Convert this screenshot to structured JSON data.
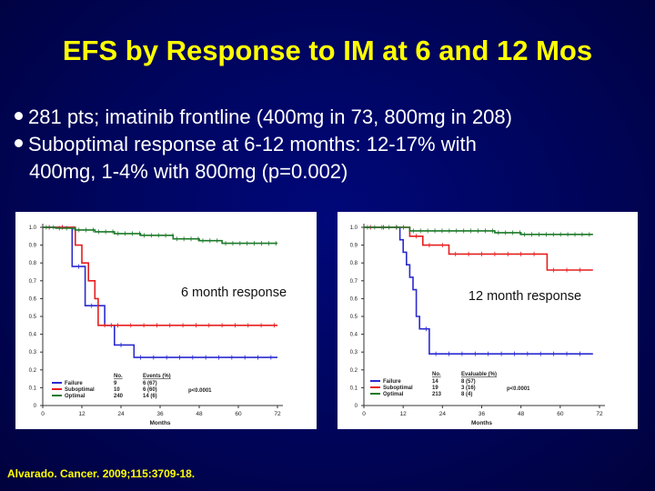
{
  "slide": {
    "title": "EFS by Response to IM at 6 and 12 Mos",
    "bullets": [
      {
        "lines": [
          "281 pts; imatinib frontline (400mg in 73, 800mg in 208)"
        ]
      },
      {
        "lines": [
          "Suboptimal response at 6-12 months: 12-17% with",
          "400mg, 1-4% with 800mg (p=0.002)"
        ]
      }
    ],
    "citation": "Alvarado. Cancer. 2009;115:3709-18."
  },
  "colors": {
    "failure": "#2a2ad0",
    "suboptimal": "#e61e1e",
    "optimal": "#1d7a2a",
    "title": "#ffff00"
  },
  "chart_data": [
    {
      "type": "line",
      "title": "",
      "annotation": "6 month response",
      "xlabel": "Months",
      "ylabel": "",
      "xlim": [
        0,
        72
      ],
      "ylim": [
        0,
        1.0
      ],
      "xticks": [
        "0",
        "12",
        "24",
        "36",
        "48",
        "60",
        "72"
      ],
      "yticks": [
        "0",
        "0.1",
        "0.2",
        "0.3",
        "0.4",
        "0.5",
        "0.6",
        "0.7",
        "0.8",
        "0.9",
        "1.0"
      ],
      "grid": false,
      "legend_table": {
        "headers": [
          "",
          "No.",
          "Events (%)"
        ],
        "rows": [
          [
            "Failure",
            "9",
            "6 (67)"
          ],
          [
            "Suboptimal",
            "10",
            "6 (60)"
          ],
          [
            "Optimal",
            "240",
            "14 (6)"
          ]
        ],
        "pvalue": "p<0.0001"
      },
      "series": [
        {
          "name": "Failure",
          "color_key": "failure",
          "x": [
            0,
            8,
            9,
            9,
            13,
            13,
            19,
            19,
            22,
            22,
            28,
            28,
            72
          ],
          "y": [
            1.0,
            1.0,
            1.0,
            0.78,
            0.78,
            0.56,
            0.56,
            0.45,
            0.45,
            0.34,
            0.34,
            0.27,
            0.27
          ]
        },
        {
          "name": "Suboptimal",
          "color_key": "suboptimal",
          "x": [
            0,
            10,
            10,
            12,
            12,
            14,
            14,
            16,
            16,
            17,
            17,
            72
          ],
          "y": [
            1.0,
            1.0,
            0.9,
            0.9,
            0.8,
            0.8,
            0.7,
            0.7,
            0.6,
            0.6,
            0.45,
            0.45
          ],
          "end": 70
        },
        {
          "name": "Optimal",
          "color_key": "optimal",
          "x": [
            0,
            4,
            4,
            10,
            10,
            16,
            16,
            22,
            22,
            30,
            30,
            40,
            40,
            48,
            48,
            55,
            55,
            72
          ],
          "y": [
            1.0,
            1.0,
            0.995,
            0.995,
            0.985,
            0.985,
            0.975,
            0.975,
            0.965,
            0.965,
            0.955,
            0.955,
            0.935,
            0.935,
            0.925,
            0.925,
            0.91,
            0.91
          ],
          "end": 70
        }
      ]
    },
    {
      "type": "line",
      "title": "",
      "annotation": "12 month response",
      "xlabel": "Months",
      "ylabel": "",
      "xlim": [
        0,
        72
      ],
      "ylim": [
        0,
        1.0
      ],
      "xticks": [
        "0",
        "12",
        "24",
        "36",
        "48",
        "60",
        "72"
      ],
      "yticks": [
        "0",
        "0.1",
        "0.2",
        "0.3",
        "0.4",
        "0.5",
        "0.6",
        "0.7",
        "0.8",
        "0.9",
        "1.0"
      ],
      "grid": false,
      "legend_table": {
        "headers": [
          "",
          "No.",
          "Evaluable (%)"
        ],
        "rows": [
          [
            "Failure",
            "14",
            "8 (57)"
          ],
          [
            "Suboptimal",
            "19",
            "3 (16)"
          ],
          [
            "Optimal",
            "213",
            "8 (4)"
          ]
        ],
        "pvalue": "p<0.0001"
      },
      "series": [
        {
          "name": "Failure",
          "color_key": "failure",
          "x": [
            0,
            11,
            11,
            12,
            12,
            13,
            13,
            14,
            14,
            15,
            15,
            16,
            16,
            17,
            17,
            20,
            20,
            70
          ],
          "y": [
            1.0,
            1.0,
            0.93,
            0.93,
            0.86,
            0.86,
            0.79,
            0.79,
            0.72,
            0.72,
            0.65,
            0.65,
            0.5,
            0.5,
            0.43,
            0.43,
            0.29,
            0.29
          ]
        },
        {
          "name": "Suboptimal",
          "color_key": "suboptimal",
          "x": [
            0,
            14,
            14,
            18,
            18,
            26,
            26,
            56,
            56,
            70
          ],
          "y": [
            1.0,
            1.0,
            0.95,
            0.95,
            0.9,
            0.9,
            0.85,
            0.85,
            0.76,
            0.76
          ]
        },
        {
          "name": "Optimal",
          "color_key": "optimal",
          "x": [
            0,
            14,
            14,
            40,
            40,
            48,
            48,
            70
          ],
          "y": [
            1.0,
            1.0,
            0.98,
            0.98,
            0.97,
            0.97,
            0.96,
            0.96
          ]
        }
      ]
    }
  ]
}
